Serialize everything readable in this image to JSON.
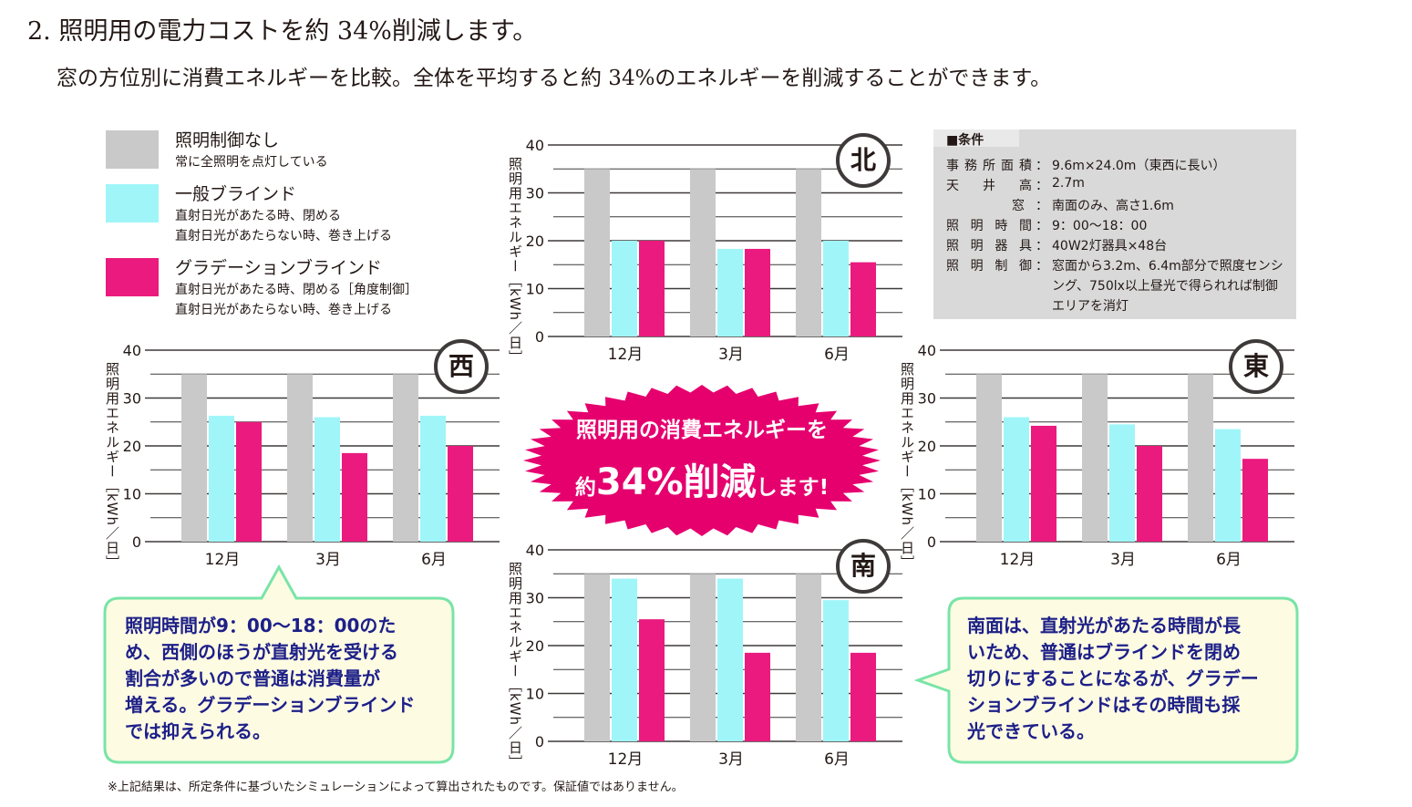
{
  "heading": "2. 照明用の電力コストを約 34%削減します。",
  "subheading": "窓の方位別に消費エネルギーを比較。全体を平均すると約 34%のエネルギーを削減することができます。",
  "legend": [
    {
      "name": "照明制御なし",
      "desc": [
        "常に全照明を点灯している"
      ],
      "color": "#c9c9c9"
    },
    {
      "name": "一般ブラインド",
      "desc": [
        "直射日光があたる時、閉める",
        "直射日光があたらない時、巻き上げる"
      ],
      "color": "#a0f5f8"
    },
    {
      "name": "グラデーションブラインド",
      "desc": [
        "直射日光があたる時、閉める［角度制御］",
        "直射日光があたらない時、巻き上げる"
      ],
      "color": "#ea1a7f"
    }
  ],
  "conditions": {
    "title": "■条件",
    "rows": [
      {
        "label": "事務所面積",
        "value": "9.6m×24.0m（東西に長い）"
      },
      {
        "label": "天井高",
        "value": "2.7m"
      },
      {
        "label": "窓",
        "value": "南面のみ、高さ1.6m"
      },
      {
        "label": "照明時間",
        "value": "9：00〜18：00"
      },
      {
        "label": "照明器具",
        "value": "40W2灯器具×48台"
      },
      {
        "label": "照明制御",
        "value": "窓面から3.2m、6.4m部分で照度センシ"
      }
    ],
    "continuation": [
      "ング、750lx以上昼光で得られれば制御",
      "エリアを消灯"
    ]
  },
  "chart_data": [
    {
      "type": "bar",
      "region": "北",
      "categories": [
        "12月",
        "3月",
        "6月"
      ],
      "series": [
        {
          "name": "照明制御なし",
          "values": [
            35,
            35,
            35
          ]
        },
        {
          "name": "一般ブラインド",
          "values": [
            20,
            18.3,
            20
          ]
        },
        {
          "name": "グラデーションブラインド",
          "values": [
            20,
            18.3,
            15.5
          ]
        }
      ],
      "ylabel": "照明用エネルギー［kWh／日］",
      "ylim": [
        0,
        40
      ],
      "yticks": [
        0,
        10,
        20,
        30,
        40
      ]
    },
    {
      "type": "bar",
      "region": "西",
      "categories": [
        "12月",
        "3月",
        "6月"
      ],
      "series": [
        {
          "name": "照明制御なし",
          "values": [
            35,
            35,
            35
          ]
        },
        {
          "name": "一般ブラインド",
          "values": [
            26.3,
            26,
            26.3
          ]
        },
        {
          "name": "グラデーションブラインド",
          "values": [
            25,
            18.5,
            20
          ]
        }
      ],
      "ylabel": "照明用エネルギー［kWh／日］",
      "ylim": [
        0,
        40
      ],
      "yticks": [
        0,
        10,
        20,
        30,
        40
      ]
    },
    {
      "type": "bar",
      "region": "東",
      "categories": [
        "12月",
        "3月",
        "6月"
      ],
      "series": [
        {
          "name": "照明制御なし",
          "values": [
            35,
            35,
            35
          ]
        },
        {
          "name": "一般ブラインド",
          "values": [
            26,
            24.5,
            23.5
          ]
        },
        {
          "name": "グラデーションブラインド",
          "values": [
            24.2,
            20,
            17.3
          ]
        }
      ],
      "ylabel": "照明用エネルギー［kWh／日］",
      "ylim": [
        0,
        40
      ],
      "yticks": [
        0,
        10,
        20,
        30,
        40
      ]
    },
    {
      "type": "bar",
      "region": "南",
      "categories": [
        "12月",
        "3月",
        "6月"
      ],
      "series": [
        {
          "name": "照明制御なし",
          "values": [
            35,
            35,
            35
          ]
        },
        {
          "name": "一般ブラインド",
          "values": [
            34,
            34,
            29.5
          ]
        },
        {
          "name": "グラデーションブラインド",
          "values": [
            25.5,
            18.5,
            18.5
          ]
        }
      ],
      "ylabel": "照明用エネルギー［kWh／日］",
      "ylim": [
        0,
        40
      ],
      "yticks": [
        0,
        10,
        20,
        30,
        40
      ]
    }
  ],
  "starburst": {
    "line1": "照明用の消費エネルギーを",
    "pre": "約",
    "big": "34%削減",
    "post": "します!",
    "color": "#e5006e"
  },
  "callout_west": "照明時間が9：00～18：00のた\nめ、西側のほうが直射光を受ける\n割合が多いので普通は消費量が\n増える。グラデーションブラインド\nでは抑えられる。",
  "callout_south": "南面は、直射光があたる時間が長\nいため、普通はブラインドを閉め\n切りにすることになるが、グラデー\nションブラインドはその時間も採\n光できている。",
  "callout_colors": {
    "fill": "#fefbe3",
    "border": "#79e4a7",
    "text": "#1d2088"
  },
  "footnote": "※上記結果は、所定条件に基づいたシミュレーションによって算出されたものです。保証値ではありません。"
}
